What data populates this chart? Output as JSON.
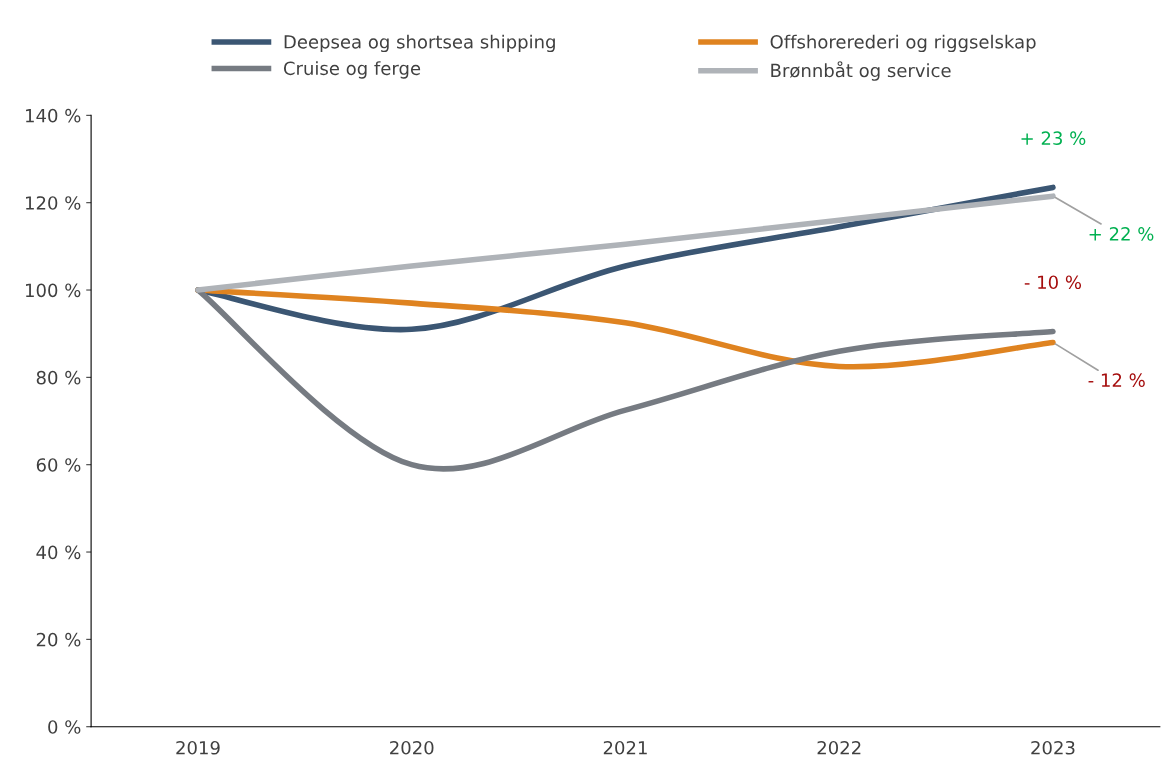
{
  "chart_data": {
    "type": "line",
    "categories": [
      "2019",
      "2020",
      "2021",
      "2022",
      "2023"
    ],
    "series": [
      {
        "name": "Deepsea og shortsea shipping",
        "color": "#3b5673",
        "values": [
          100,
          91,
          105.5,
          114.5,
          123.5
        ]
      },
      {
        "name": "Offshorerederi og riggselskap",
        "color": "#df8320",
        "values": [
          100,
          97,
          92.5,
          82.5,
          88
        ]
      },
      {
        "name": "Cruise og ferge",
        "color": "#767b82",
        "values": [
          100,
          60,
          72.5,
          86,
          90.5
        ]
      },
      {
        "name": "Brønnbåt og service",
        "color": "#afb3b8",
        "values": [
          100,
          105.5,
          110.5,
          116,
          121.5
        ]
      }
    ],
    "ylim": [
      0,
      140
    ],
    "yticks": [
      {
        "value": 0,
        "label": "0 %"
      },
      {
        "value": 20,
        "label": "20 %"
      },
      {
        "value": 40,
        "label": "40 %"
      },
      {
        "value": 60,
        "label": "60 %"
      },
      {
        "value": 80,
        "label": "80 %"
      },
      {
        "value": 100,
        "label": "100 %"
      },
      {
        "value": 120,
        "label": "120 %"
      },
      {
        "value": 140,
        "label": "140 %"
      }
    ],
    "annotations": [
      {
        "text": "+ 23 %",
        "x": "2023",
        "y": 123.5
      },
      {
        "text": "+ 22 %",
        "x": "2023",
        "y": 121.5
      },
      {
        "text": "- 10 %",
        "x": "2023",
        "y": 90.5
      },
      {
        "text": "- 12 %",
        "x": "2023",
        "y": 88
      }
    ],
    "grid": false,
    "legend": "top",
    "marker": "none",
    "line_style": "solid"
  }
}
